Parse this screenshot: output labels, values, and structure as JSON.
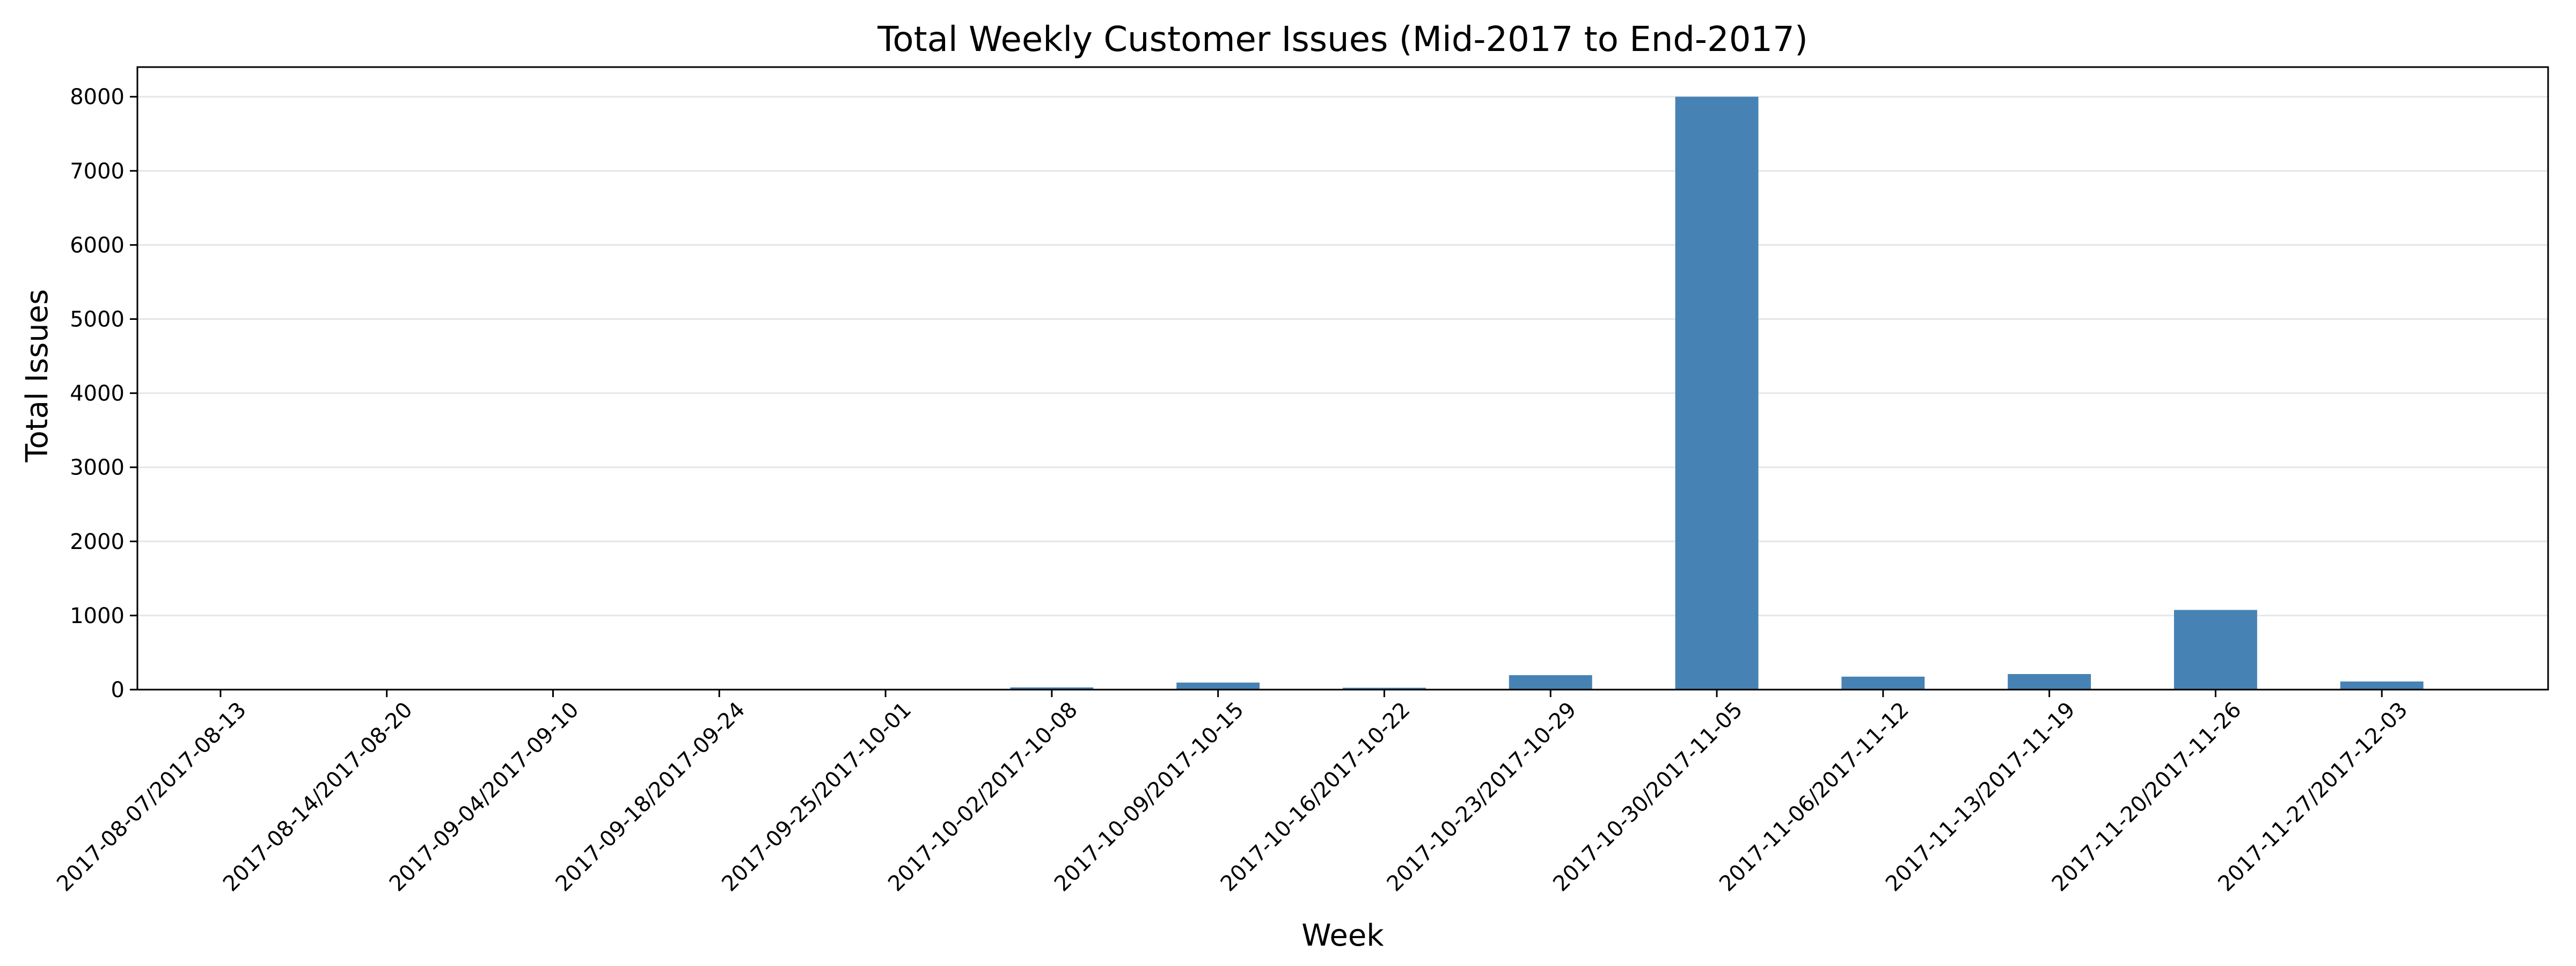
{
  "chart_data": {
    "type": "bar",
    "title": "Total Weekly Customer Issues (Mid-2017 to End-2017)",
    "xlabel": "Week",
    "ylabel": "Total Issues",
    "categories": [
      "2017-08-07/2017-08-13",
      "2017-08-14/2017-08-20",
      "2017-09-04/2017-09-10",
      "2017-09-18/2017-09-24",
      "2017-09-25/2017-10-01",
      "2017-10-02/2017-10-08",
      "2017-10-09/2017-10-15",
      "2017-10-16/2017-10-22",
      "2017-10-23/2017-10-29",
      "2017-10-30/2017-11-05",
      "2017-11-06/2017-11-12",
      "2017-11-13/2017-11-19",
      "2017-11-20/2017-11-26",
      "2017-11-27/2017-12-03"
    ],
    "values": [
      2,
      1,
      1,
      1,
      3,
      30,
      95,
      25,
      195,
      8000,
      175,
      210,
      1075,
      110
    ],
    "ylim": [
      0,
      8400
    ],
    "yticks": [
      "0",
      "1000",
      "2000",
      "3000",
      "4000",
      "5000",
      "6000",
      "7000",
      "8000"
    ],
    "grid": "horizontal",
    "bar_color": "#4682b4"
  }
}
